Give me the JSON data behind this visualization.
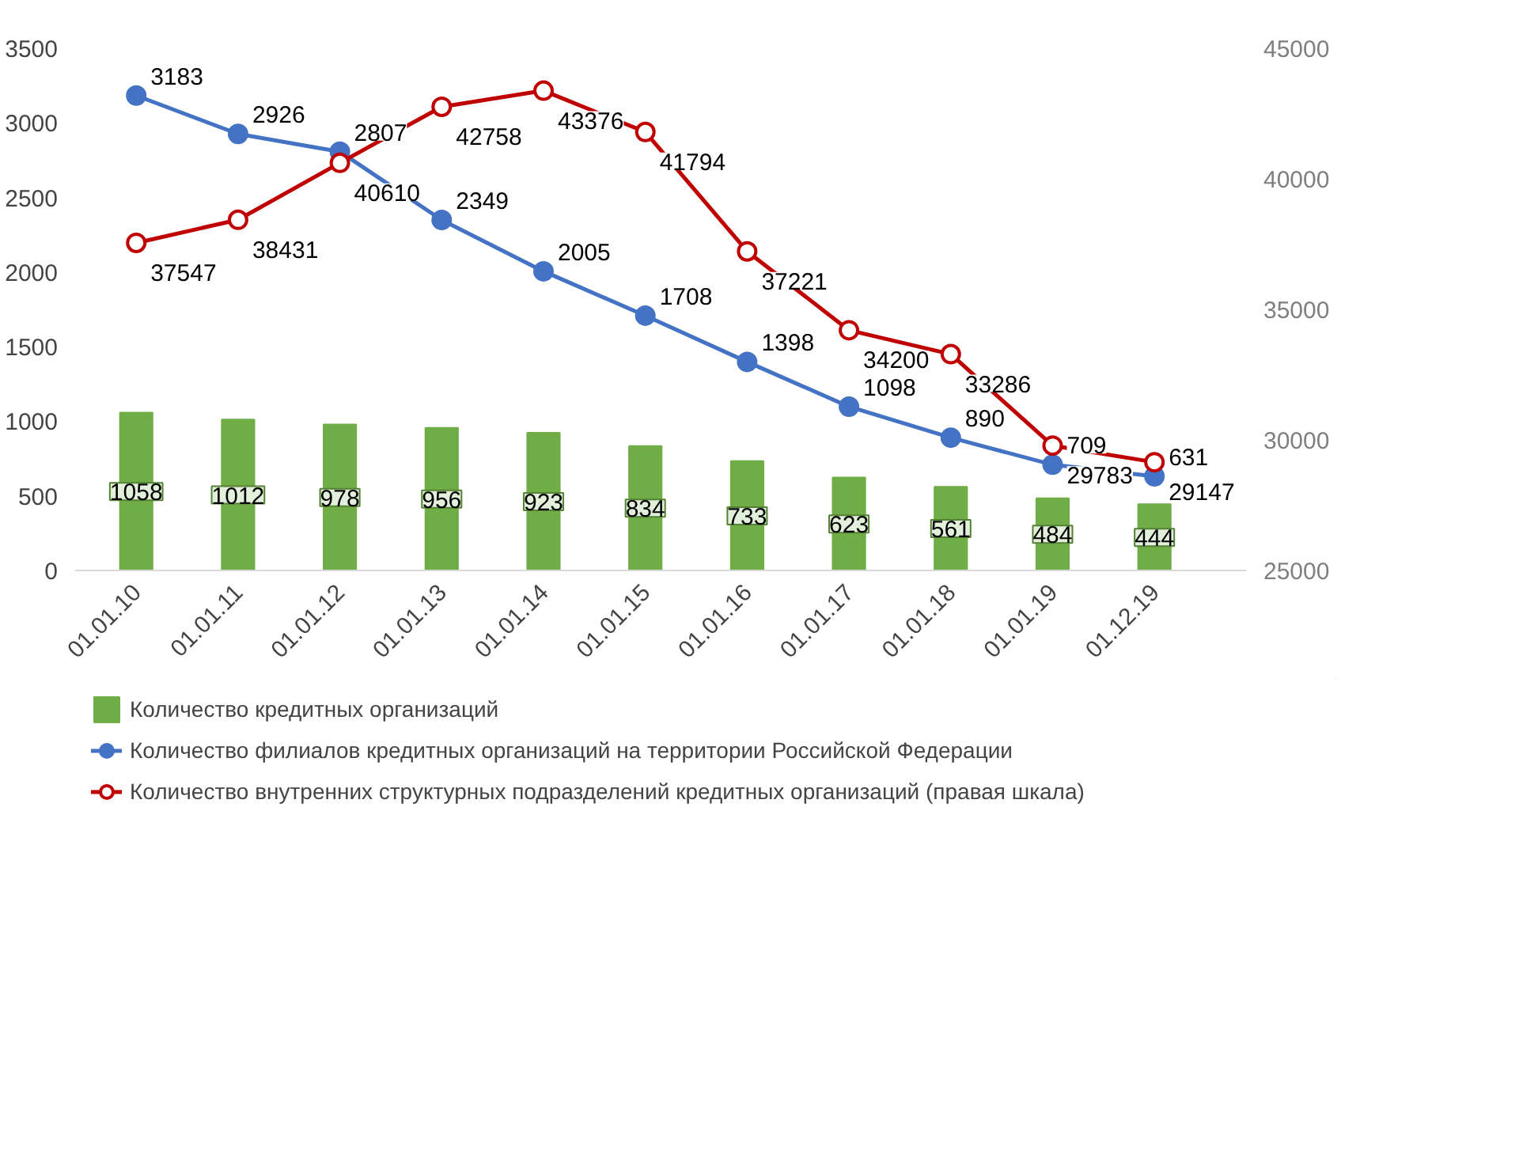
{
  "chart_data": {
    "type": "bar",
    "categories": [
      "01.01.10",
      "01.01.11",
      "01.01.12",
      "01.01.13",
      "01.01.14",
      "01.01.15",
      "01.01.16",
      "01.01.17",
      "01.01.18",
      "01.01.19",
      "01.12.19"
    ],
    "series": [
      {
        "name": "Количество кредитных организаций",
        "color": "#70ad47",
        "values": [
          1058,
          1012,
          978,
          956,
          923,
          834,
          733,
          623,
          561,
          484,
          444
        ]
      },
      {
        "name": "Количество филиалов кредитных организаций на территории Российской Федерации",
        "type": "line",
        "color": "#4472c4",
        "values": [
          3183,
          2926,
          2807,
          2349,
          2005,
          1708,
          1398,
          1098,
          890,
          709,
          631
        ]
      },
      {
        "name": "Количество внутренних структурных подразделений кредитных организаций (правая шкала)",
        "type": "line",
        "axis": "y2",
        "color": "#c00000",
        "values": [
          37547,
          38431,
          40610,
          42758,
          43376,
          41794,
          37221,
          34200,
          33286,
          29783,
          29147
        ]
      }
    ],
    "ylim": [
      0,
      3500
    ],
    "yticks": [
      0,
      500,
      1000,
      1500,
      2000,
      2500,
      3000,
      3500
    ],
    "y2lim": [
      25000,
      45000
    ],
    "y2ticks": [
      25000,
      30000,
      35000,
      40000,
      45000
    ],
    "data_labels": true,
    "marker": "circle",
    "grid": false,
    "legend": "bottom"
  }
}
